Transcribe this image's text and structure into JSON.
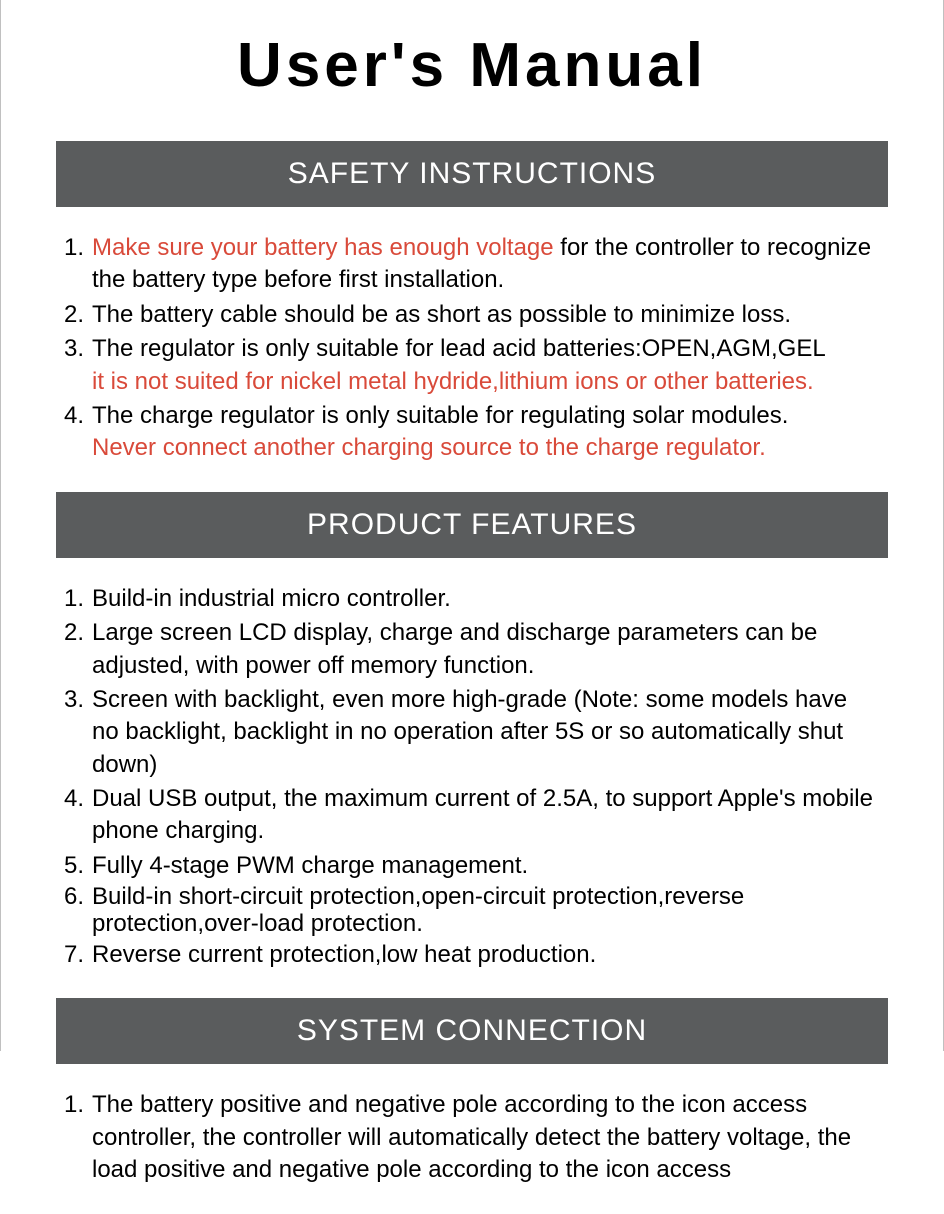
{
  "colors": {
    "page_bg": "#ffffff",
    "header_bg": "#5a5c5d",
    "header_text": "#ffffff",
    "body_text": "#000000",
    "warning_text": "#d94a3a",
    "border": "#c0c0c0"
  },
  "typography": {
    "main_title_size": 62,
    "section_header_size": 30,
    "body_size": 24,
    "main_title_weight": "bold"
  },
  "title": "User's  Manual",
  "sections": [
    {
      "header": "SAFETY INSTRUCTIONS",
      "items": [
        {
          "num": "1.",
          "parts": [
            {
              "text": "Make sure your battery has enough voltage",
              "warn": true
            },
            {
              "text": " for the controller to recognize the battery type before first installation.",
              "warn": false
            }
          ]
        },
        {
          "num": "2.",
          "parts": [
            {
              "text": "The battery cable should be as short as possible to minimize loss.",
              "warn": false
            }
          ]
        },
        {
          "num": "3.",
          "parts": [
            {
              "text": "The regulator is only suitable for lead acid batteries:OPEN,AGM,GEL",
              "warn": false
            }
          ],
          "subline": {
            "text": "it is not suited for nickel metal hydride,lithium ions or other batteries.",
            "warn": true
          }
        },
        {
          "num": "4.",
          "parts": [
            {
              "text": "The charge regulator is only suitable for regulating solar modules.",
              "warn": false
            }
          ],
          "subline": {
            "text": "Never connect another charging source to the charge regulator.",
            "warn": true
          }
        }
      ]
    },
    {
      "header": "PRODUCT FEATURES",
      "items": [
        {
          "num": "1.",
          "text": "Build-in industrial micro controller."
        },
        {
          "num": "2.",
          "text": "Large screen LCD display, charge and discharge parameters can be adjusted, with power off memory function."
        },
        {
          "num": "3.",
          "text": "Screen with backlight, even more high-grade (Note: some models have no backlight, backlight in no operation after 5S or so automatically shut down)"
        },
        {
          "num": "4.",
          "text": "Dual USB output, the maximum current of 2.5A, to support Apple's mobile phone charging."
        },
        {
          "num": "5.",
          "text": "Fully 4-stage PWM charge management."
        },
        {
          "num": "6.",
          "text": "Build-in short-circuit protection,open-circuit protection,reverse protection,over-load protection.",
          "tight": true
        },
        {
          "num": "7.",
          "text": " Reverse current protection,low heat production."
        }
      ]
    },
    {
      "header": "SYSTEM CONNECTION",
      "items": [
        {
          "num": "1.",
          "text": "The battery positive and negative pole according to the icon access controller, the controller will automatically detect the battery voltage, the load positive and negative pole according to the icon access"
        }
      ]
    }
  ]
}
